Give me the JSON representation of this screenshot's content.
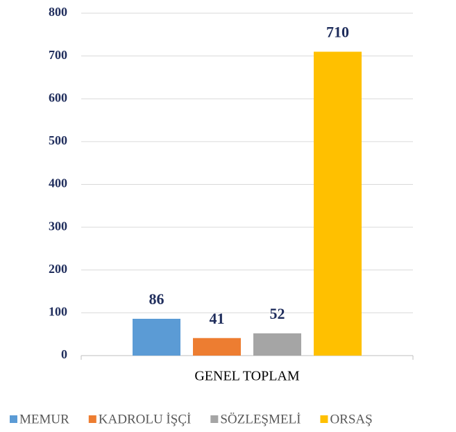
{
  "chart_data": {
    "type": "bar",
    "categories": [
      "GENEL TOPLAM"
    ],
    "series": [
      {
        "name": "MEMUR",
        "color": "#5b9bd5",
        "values": [
          86
        ]
      },
      {
        "name": "KADROLU İŞÇİ",
        "color": "#ed7d31",
        "values": [
          41
        ]
      },
      {
        "name": "SÖZLEŞMELİ",
        "color": "#a5a5a5",
        "values": [
          52
        ]
      },
      {
        "name": "ORSAŞ",
        "color": "#ffc000",
        "values": [
          710
        ]
      }
    ],
    "ylim": [
      0,
      800
    ],
    "yticks": [
      0,
      100,
      200,
      300,
      400,
      500,
      600,
      700,
      800
    ],
    "grid": true,
    "legend": "bottom"
  }
}
